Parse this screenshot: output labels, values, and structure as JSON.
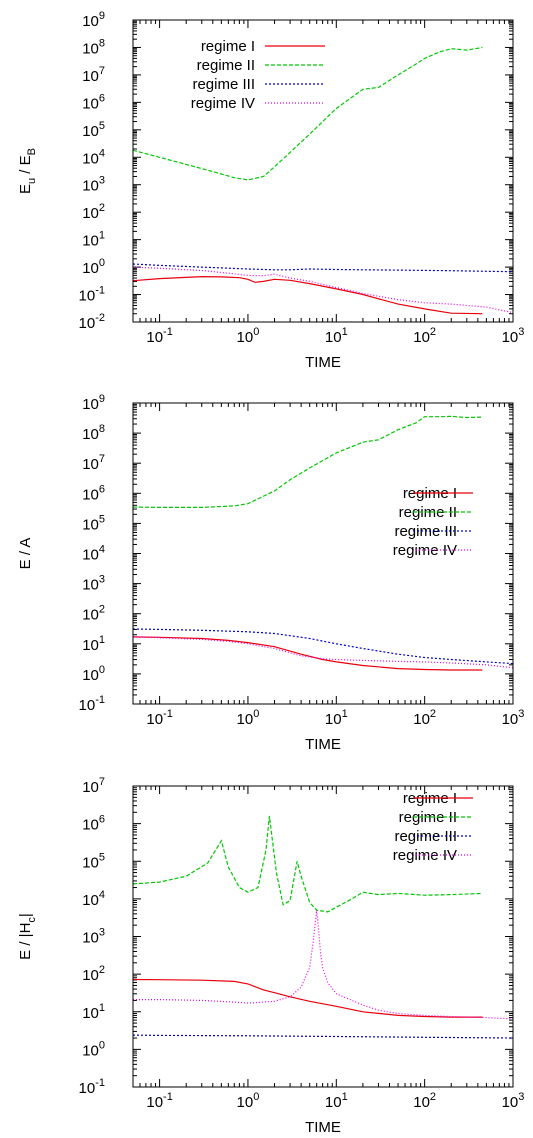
{
  "chart_data": [
    {
      "type": "line",
      "title": "",
      "xlabel": "TIME",
      "ylabel": "E",
      "ylabel_sub": "u",
      "ylabel_tail": " / E",
      "ylabel_sub2": "B",
      "xscale": "log",
      "yscale": "log",
      "xlim": [
        0.05,
        1000
      ],
      "ylim": [
        0.01,
        1000000000
      ],
      "xticks": [
        {
          "base": "10",
          "exp": "-1",
          "v": 0.1
        },
        {
          "base": "10",
          "exp": "0",
          "v": 1
        },
        {
          "base": "10",
          "exp": "1",
          "v": 10
        },
        {
          "base": "10",
          "exp": "2",
          "v": 100
        },
        {
          "base": "10",
          "exp": "3",
          "v": 1000
        }
      ],
      "yticks": [
        {
          "base": "10",
          "exp": "-2",
          "v": 0.01
        },
        {
          "base": "10",
          "exp": "-1",
          "v": 0.1
        },
        {
          "base": "10",
          "exp": "0",
          "v": 1
        },
        {
          "base": "10",
          "exp": "1",
          "v": 10
        },
        {
          "base": "10",
          "exp": "2",
          "v": 100
        },
        {
          "base": "10",
          "exp": "3",
          "v": 1000
        },
        {
          "base": "10",
          "exp": "4",
          "v": 10000
        },
        {
          "base": "10",
          "exp": "5",
          "v": 100000
        },
        {
          "base": "10",
          "exp": "6",
          "v": 1000000
        },
        {
          "base": "10",
          "exp": "7",
          "v": 10000000
        },
        {
          "base": "10",
          "exp": "8",
          "v": 100000000
        },
        {
          "base": "10",
          "exp": "9",
          "v": 1000000000
        }
      ],
      "legend_position": "top-left",
      "series": [
        {
          "name": "regime I",
          "color": "#e8000b",
          "dash": "",
          "x": [
            0.05,
            0.1,
            0.3,
            0.5,
            0.8,
            1.0,
            1.2,
            1.5,
            2,
            3,
            5,
            10,
            20,
            50,
            100,
            200,
            450
          ],
          "y": [
            0.32,
            0.38,
            0.45,
            0.44,
            0.41,
            0.36,
            0.28,
            0.3,
            0.36,
            0.33,
            0.25,
            0.16,
            0.1,
            0.045,
            0.03,
            0.021,
            0.02
          ]
        },
        {
          "name": "regime II",
          "color": "#00c800",
          "dash": "4,2",
          "x": [
            0.05,
            0.1,
            0.2,
            0.4,
            0.7,
            1.0,
            1.5,
            2,
            3,
            5,
            8,
            10,
            20,
            30,
            50,
            80,
            100,
            150,
            200,
            300,
            450
          ],
          "y": [
            18000,
            10000,
            5500,
            3000,
            1800,
            1500,
            2000,
            4500,
            15000,
            70000,
            300000,
            600000,
            3000000,
            3500000,
            10000000,
            25000000,
            40000000,
            70000000,
            90000000,
            80000000,
            100000000
          ]
        },
        {
          "name": "regime III",
          "color": "#0000d0",
          "dash": "2,2",
          "x": [
            0.05,
            0.1,
            0.3,
            1,
            2,
            3,
            5,
            10,
            20,
            50,
            100,
            200,
            500,
            1000
          ],
          "y": [
            1.3,
            1.15,
            1.0,
            0.85,
            0.8,
            0.8,
            0.85,
            0.82,
            0.8,
            0.78,
            0.76,
            0.74,
            0.7,
            0.68
          ]
        },
        {
          "name": "regime IV",
          "color": "#e600e6",
          "dash": "1,2",
          "x": [
            0.05,
            0.1,
            0.3,
            0.6,
            1,
            1.5,
            2,
            3,
            5,
            10,
            20,
            50,
            100,
            200,
            500,
            1000
          ],
          "y": [
            1.0,
            0.9,
            0.75,
            0.6,
            0.5,
            0.48,
            0.55,
            0.4,
            0.3,
            0.18,
            0.11,
            0.065,
            0.05,
            0.045,
            0.035,
            0.022
          ]
        }
      ]
    },
    {
      "type": "line",
      "title": "",
      "xlabel": "TIME",
      "ylabel": "E / A",
      "xscale": "log",
      "yscale": "log",
      "xlim": [
        0.05,
        1000
      ],
      "ylim": [
        0.1,
        1000000000
      ],
      "xticks": [
        {
          "base": "10",
          "exp": "-1",
          "v": 0.1
        },
        {
          "base": "10",
          "exp": "0",
          "v": 1
        },
        {
          "base": "10",
          "exp": "1",
          "v": 10
        },
        {
          "base": "10",
          "exp": "2",
          "v": 100
        },
        {
          "base": "10",
          "exp": "3",
          "v": 1000
        }
      ],
      "yticks": [
        {
          "base": "10",
          "exp": "-1",
          "v": 0.1
        },
        {
          "base": "10",
          "exp": "0",
          "v": 1
        },
        {
          "base": "10",
          "exp": "1",
          "v": 10
        },
        {
          "base": "10",
          "exp": "2",
          "v": 100
        },
        {
          "base": "10",
          "exp": "3",
          "v": 1000
        },
        {
          "base": "10",
          "exp": "4",
          "v": 10000
        },
        {
          "base": "10",
          "exp": "5",
          "v": 100000
        },
        {
          "base": "10",
          "exp": "6",
          "v": 1000000
        },
        {
          "base": "10",
          "exp": "7",
          "v": 10000000
        },
        {
          "base": "10",
          "exp": "8",
          "v": 100000000
        },
        {
          "base": "10",
          "exp": "9",
          "v": 1000000000
        }
      ],
      "legend_position": "center-right",
      "series": [
        {
          "name": "regime I",
          "color": "#e8000b",
          "dash": "",
          "x": [
            0.05,
            0.1,
            0.3,
            0.6,
            1,
            2,
            4,
            7,
            10,
            20,
            50,
            100,
            200,
            450
          ],
          "y": [
            17,
            16.5,
            15,
            13,
            11,
            8,
            4.5,
            3,
            2.5,
            1.9,
            1.5,
            1.4,
            1.35,
            1.35
          ]
        },
        {
          "name": "regime II",
          "color": "#00c800",
          "dash": "4,2",
          "x": [
            0.05,
            0.1,
            0.3,
            0.7,
            1,
            2,
            3,
            5,
            10,
            20,
            30,
            50,
            80,
            100,
            150,
            200,
            300,
            450
          ],
          "y": [
            350000,
            340000,
            340000,
            380000,
            450000,
            1200000,
            2800000,
            7000000,
            22000000,
            50000000,
            60000000,
            130000000,
            220000000,
            350000000,
            350000000,
            360000000,
            330000000,
            340000000
          ]
        },
        {
          "name": "regime III",
          "color": "#0000d0",
          "dash": "2,2",
          "x": [
            0.05,
            0.1,
            0.3,
            1,
            2,
            5,
            10,
            20,
            50,
            100,
            200,
            500,
            1000
          ],
          "y": [
            31,
            30,
            28,
            25,
            22,
            15,
            10,
            7,
            4.5,
            3.5,
            3,
            2.5,
            2.2
          ]
        },
        {
          "name": "regime IV",
          "color": "#e600e6",
          "dash": "1,2",
          "x": [
            0.05,
            0.1,
            0.3,
            0.6,
            1,
            2,
            4,
            7,
            10,
            20,
            50,
            100,
            200,
            500,
            1000
          ],
          "y": [
            17,
            16,
            14,
            12,
            10,
            7,
            4,
            3.2,
            3,
            2.8,
            2.6,
            2.5,
            2.3,
            2,
            1.6
          ]
        }
      ]
    },
    {
      "type": "line",
      "title": "",
      "xlabel": "TIME",
      "ylabel": "E / |H",
      "ylabel_sub": "c",
      "ylabel_tail": "|",
      "xscale": "log",
      "yscale": "log",
      "xlim": [
        0.05,
        1000
      ],
      "ylim": [
        0.1,
        10000000
      ],
      "xticks": [
        {
          "base": "10",
          "exp": "-1",
          "v": 0.1
        },
        {
          "base": "10",
          "exp": "0",
          "v": 1
        },
        {
          "base": "10",
          "exp": "1",
          "v": 10
        },
        {
          "base": "10",
          "exp": "2",
          "v": 100
        },
        {
          "base": "10",
          "exp": "3",
          "v": 1000
        }
      ],
      "yticks": [
        {
          "base": "10",
          "exp": "-1",
          "v": 0.1
        },
        {
          "base": "10",
          "exp": "0",
          "v": 1
        },
        {
          "base": "10",
          "exp": "1",
          "v": 10
        },
        {
          "base": "10",
          "exp": "2",
          "v": 100
        },
        {
          "base": "10",
          "exp": "3",
          "v": 1000
        },
        {
          "base": "10",
          "exp": "4",
          "v": 10000
        },
        {
          "base": "10",
          "exp": "5",
          "v": 100000
        },
        {
          "base": "10",
          "exp": "6",
          "v": 1000000
        },
        {
          "base": "10",
          "exp": "7",
          "v": 10000000
        }
      ],
      "legend_position": "top-right",
      "series": [
        {
          "name": "regime I",
          "color": "#e8000b",
          "dash": "",
          "x": [
            0.05,
            0.1,
            0.3,
            0.7,
            1,
            1.5,
            2,
            3,
            5,
            10,
            20,
            50,
            100,
            200,
            450
          ],
          "y": [
            72,
            71,
            69,
            64,
            55,
            38,
            32,
            25,
            19,
            14,
            10,
            8,
            7.5,
            7.2,
            7.2
          ]
        },
        {
          "name": "regime II",
          "color": "#00c800",
          "dash": "4,2",
          "x": [
            0.05,
            0.1,
            0.2,
            0.35,
            0.5,
            0.6,
            0.8,
            1.0,
            1.3,
            1.6,
            1.75,
            2.1,
            2.5,
            3.0,
            3.6,
            4.0,
            5.0,
            6.0,
            8.0,
            10,
            15,
            20,
            30,
            50,
            100,
            200,
            450
          ],
          "y": [
            25000,
            28000,
            40000,
            90000,
            350000,
            70000,
            20000,
            15000,
            20000,
            200000,
            1600000,
            50000,
            7000,
            9000,
            100000,
            40000,
            8000,
            5000,
            4500,
            6000,
            10000,
            15000,
            13000,
            14000,
            12500,
            13000,
            14000
          ]
        },
        {
          "name": "regime III",
          "color": "#0000d0",
          "dash": "2,2",
          "x": [
            0.05,
            0.1,
            1,
            10,
            100,
            1000
          ],
          "y": [
            2.4,
            2.35,
            2.3,
            2.2,
            2.1,
            2.0
          ]
        },
        {
          "name": "regime IV",
          "color": "#e600e6",
          "dash": "1,2",
          "x": [
            0.05,
            0.1,
            0.3,
            0.7,
            1,
            2,
            3,
            4,
            5,
            5.5,
            6,
            6.3,
            6.6,
            7,
            8,
            10,
            15,
            20,
            30,
            50,
            100,
            200,
            500,
            1000
          ],
          "y": [
            21,
            21,
            20,
            18,
            17,
            19,
            25,
            45,
            150,
            800,
            5000,
            1500,
            400,
            150,
            60,
            30,
            20,
            15,
            11,
            9,
            8,
            7.5,
            7,
            6.5
          ]
        }
      ]
    }
  ]
}
